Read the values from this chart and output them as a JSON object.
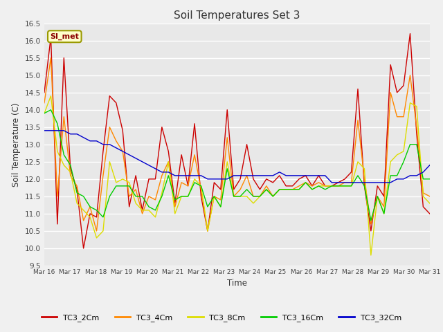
{
  "title": "Soil Temperatures Set 3",
  "xlabel": "Time",
  "ylabel": "Soil Temperature (C)",
  "ylim": [
    9.5,
    16.5
  ],
  "yticks": [
    9.5,
    10.0,
    10.5,
    11.0,
    11.5,
    12.0,
    12.5,
    13.0,
    13.5,
    14.0,
    14.5,
    15.0,
    15.5,
    16.0,
    16.5
  ],
  "xtick_labels": [
    "Mar 16",
    "Mar 17",
    "Mar 18",
    "Mar 19",
    "Mar 20",
    "Mar 21",
    "Mar 22",
    "Mar 23",
    "Mar 24",
    "Mar 25",
    "Mar 26",
    "Mar 27",
    "Mar 28",
    "Mar 29",
    "Mar 30",
    "Mar 31"
  ],
  "colors": {
    "TC3_2Cm": "#cc0000",
    "TC3_4Cm": "#ff8800",
    "TC3_8Cm": "#dddd00",
    "TC3_16Cm": "#00cc00",
    "TC3_32Cm": "#0000cc"
  },
  "legend_label": "SI_met",
  "plot_bg_color": "#e8e8e8",
  "fig_bg_color": "#f0f0f0",
  "grid_color": "#ffffff",
  "series": {
    "TC3_2Cm": [
      14.5,
      16.1,
      10.7,
      15.5,
      12.3,
      11.7,
      10.0,
      11.0,
      10.9,
      12.8,
      14.4,
      14.2,
      13.4,
      11.2,
      12.1,
      11.1,
      12.0,
      12.0,
      13.5,
      12.8,
      11.3,
      12.7,
      11.8,
      13.6,
      11.5,
      10.5,
      11.9,
      11.7,
      14.0,
      11.7,
      12.0,
      13.0,
      12.0,
      11.7,
      12.0,
      11.9,
      12.1,
      11.8,
      11.8,
      12.0,
      12.1,
      11.8,
      12.1,
      11.8,
      11.8,
      11.9,
      12.0,
      12.2,
      14.6,
      11.8,
      10.5,
      11.8,
      11.5,
      15.3,
      14.5,
      14.7,
      16.2,
      13.3,
      11.2,
      11.0
    ],
    "TC3_4Cm": [
      14.2,
      15.5,
      11.5,
      13.8,
      12.1,
      11.8,
      10.8,
      11.2,
      10.5,
      12.1,
      13.5,
      13.1,
      12.8,
      11.5,
      11.7,
      11.0,
      11.5,
      11.4,
      12.1,
      12.5,
      11.2,
      11.9,
      11.8,
      12.7,
      11.7,
      10.5,
      11.5,
      11.4,
      13.2,
      11.5,
      11.7,
      12.1,
      11.5,
      11.5,
      11.8,
      11.5,
      11.7,
      11.7,
      11.7,
      11.8,
      11.9,
      11.8,
      11.9,
      11.8,
      11.8,
      11.8,
      11.9,
      11.9,
      13.7,
      12.0,
      10.7,
      11.5,
      11.2,
      14.5,
      13.8,
      13.8,
      15.0,
      13.5,
      11.6,
      11.5
    ],
    "TC3_8Cm": [
      13.9,
      14.4,
      12.8,
      12.4,
      12.2,
      11.3,
      11.1,
      10.9,
      10.3,
      10.5,
      12.5,
      11.9,
      12.0,
      11.9,
      11.3,
      11.1,
      11.1,
      10.9,
      11.6,
      12.5,
      11.0,
      11.5,
      11.5,
      12.0,
      11.8,
      10.5,
      11.5,
      11.2,
      12.5,
      11.5,
      11.5,
      11.5,
      11.3,
      11.5,
      11.7,
      11.5,
      11.7,
      11.7,
      11.7,
      11.7,
      11.9,
      11.7,
      11.8,
      11.8,
      11.8,
      11.8,
      11.8,
      11.8,
      12.5,
      12.3,
      9.8,
      11.5,
      11.0,
      12.5,
      12.7,
      12.8,
      14.2,
      14.1,
      11.5,
      11.3
    ],
    "TC3_16Cm": [
      13.9,
      14.0,
      13.6,
      12.7,
      12.4,
      11.6,
      11.5,
      11.2,
      11.1,
      10.9,
      11.5,
      11.8,
      11.8,
      11.8,
      11.5,
      11.5,
      11.2,
      11.1,
      11.5,
      12.1,
      11.4,
      11.5,
      11.5,
      11.9,
      11.8,
      11.2,
      11.5,
      11.2,
      12.3,
      11.5,
      11.5,
      11.7,
      11.5,
      11.5,
      11.7,
      11.5,
      11.7,
      11.7,
      11.7,
      11.7,
      11.9,
      11.7,
      11.8,
      11.7,
      11.8,
      11.8,
      11.8,
      11.8,
      12.1,
      11.8,
      10.8,
      11.5,
      11.0,
      12.1,
      12.1,
      12.5,
      13.0,
      13.0,
      12.0,
      12.0
    ],
    "TC3_32Cm": [
      13.4,
      13.4,
      13.4,
      13.4,
      13.3,
      13.3,
      13.2,
      13.1,
      13.1,
      13.0,
      13.0,
      12.9,
      12.8,
      12.7,
      12.6,
      12.5,
      12.4,
      12.3,
      12.2,
      12.2,
      12.1,
      12.1,
      12.1,
      12.1,
      12.1,
      12.0,
      12.0,
      12.0,
      12.0,
      12.1,
      12.1,
      12.1,
      12.1,
      12.1,
      12.1,
      12.1,
      12.2,
      12.1,
      12.1,
      12.1,
      12.1,
      12.1,
      12.1,
      12.1,
      11.9,
      11.9,
      11.9,
      11.9,
      11.9,
      11.9,
      11.9,
      11.9,
      11.9,
      11.9,
      12.0,
      12.0,
      12.1,
      12.1,
      12.2,
      12.4
    ]
  }
}
